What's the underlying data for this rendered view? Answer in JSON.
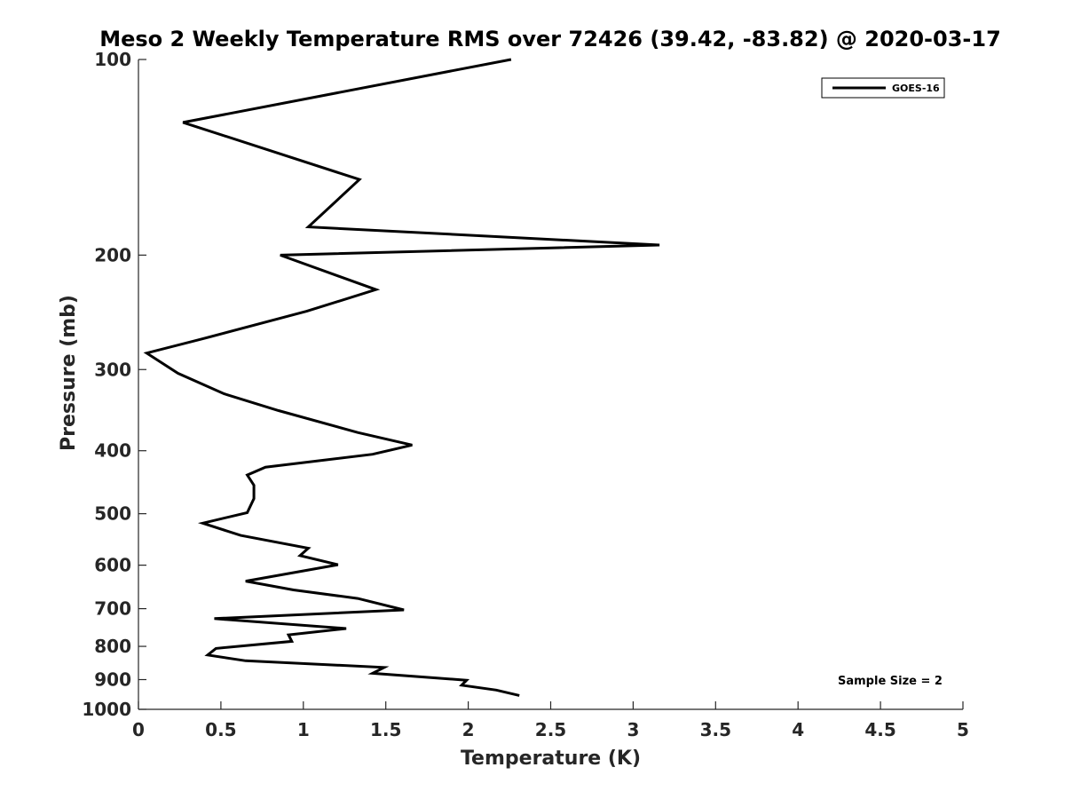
{
  "chart_data": {
    "type": "line",
    "title": "Meso 2 Weekly Temperature RMS over 72426 (39.42, -83.82) @ 2020-03-17",
    "xlabel": "Temperature (K)",
    "ylabel": "Pressure (mb)",
    "xlim": [
      0,
      5
    ],
    "ylim": [
      100,
      1000
    ],
    "y_scale": "log",
    "y_reversed": true,
    "x_ticks": [
      "0",
      "0.5",
      "1",
      "1.5",
      "2",
      "2.5",
      "3",
      "3.5",
      "4",
      "4.5",
      "5"
    ],
    "y_ticks": [
      "100",
      "200",
      "300",
      "400",
      "500",
      "600",
      "700",
      "800",
      "900",
      "1000"
    ],
    "grid": false,
    "legend_position": "top-right",
    "annotation": "Sample Size = 2",
    "series": [
      {
        "name": "GOES-16",
        "color": "#000000",
        "x": [
          2.26,
          0.27,
          1.34,
          1.03,
          3.16,
          0.86,
          1.44,
          1.02,
          0.39,
          0.05,
          0.24,
          0.52,
          0.85,
          1.33,
          1.66,
          1.42,
          0.77,
          0.66,
          0.7,
          0.7,
          0.66,
          0.39,
          0.62,
          1.03,
          0.98,
          1.21,
          0.65,
          0.94,
          1.33,
          1.61,
          0.46,
          1.26,
          0.91,
          0.93,
          0.47,
          0.42,
          0.65,
          1.49,
          1.42,
          1.99,
          1.96,
          2.17,
          2.31
        ],
        "y": [
          100,
          125,
          153,
          181,
          193,
          200,
          226,
          244,
          269,
          283,
          304,
          327,
          347,
          375,
          392,
          405,
          424,
          436,
          452,
          474,
          498,
          517,
          540,
          565,
          580,
          599,
          635,
          655,
          675,
          703,
          725,
          751,
          768,
          786,
          806,
          825,
          842,
          862,
          880,
          902,
          918,
          934,
          952
        ]
      }
    ]
  }
}
